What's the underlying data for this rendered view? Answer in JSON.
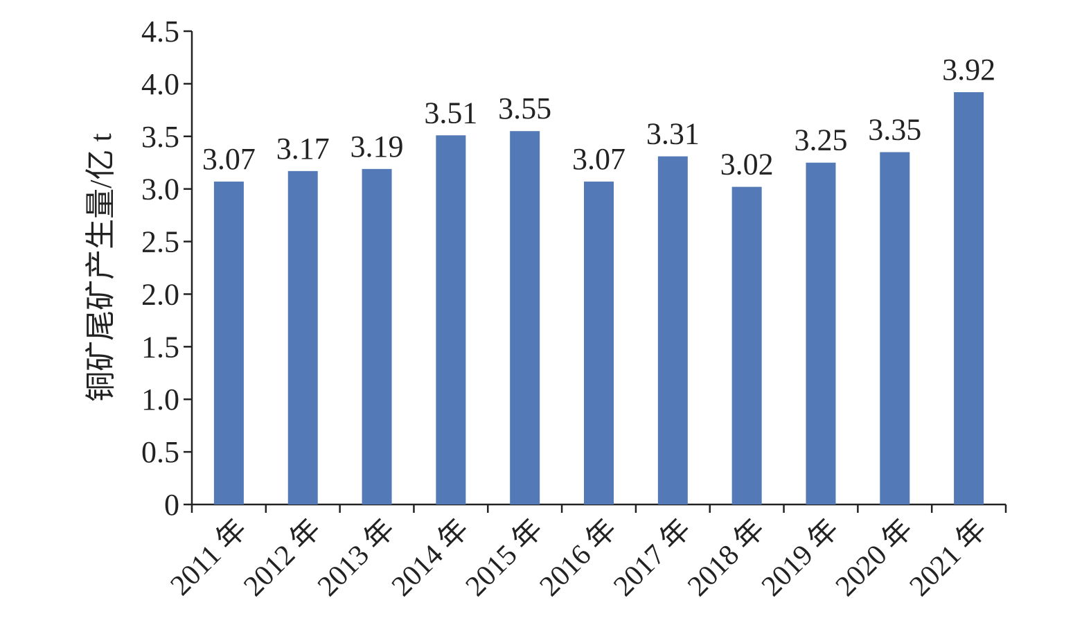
{
  "chart_data": {
    "type": "bar",
    "y_axis_label": "铜矿尾矿产生量/亿 t",
    "categories": [
      "2011 年",
      "2012 年",
      "2013 年",
      "2014 年",
      "2015 年",
      "2016 年",
      "2017 年",
      "2018 年",
      "2019 年",
      "2020 年",
      "2021 年"
    ],
    "values": [
      3.07,
      3.17,
      3.19,
      3.51,
      3.55,
      3.07,
      3.31,
      3.02,
      3.25,
      3.35,
      3.92
    ],
    "color": "#537ab6",
    "ylim": [
      0,
      4.5
    ],
    "yticks": [
      0,
      0.5,
      {
        "value": 1,
        "label": "1.0"
      },
      1.5,
      {
        "value": 2,
        "label": "2.0"
      },
      2.5,
      {
        "value": 3,
        "label": "3.0"
      },
      3.5,
      {
        "value": 4,
        "label": "4.0"
      },
      4.5
    ],
    "grid": false
  }
}
